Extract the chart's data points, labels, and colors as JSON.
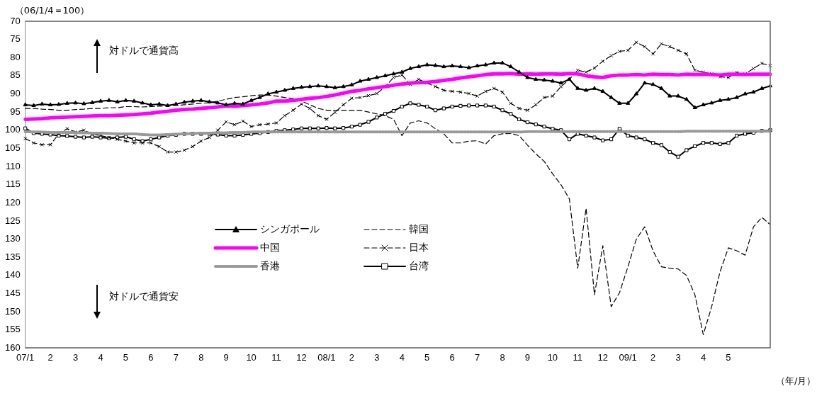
{
  "chart_data": {
    "type": "line",
    "ylabel": "（06/1/4＝100）",
    "xlabel": "（年/月）",
    "annotations": [
      "対ドルで通貨高",
      "対ドルで通貨安"
    ],
    "categories": [
      "07/1",
      null,
      null,
      "2",
      null,
      null,
      "3",
      null,
      null,
      "4",
      null,
      null,
      "5",
      null,
      null,
      "6",
      null,
      null,
      "7",
      null,
      null,
      "8",
      null,
      null,
      "9",
      null,
      null,
      "10",
      null,
      null,
      "11",
      null,
      null,
      "12",
      null,
      null,
      "08/1",
      null,
      null,
      "2",
      null,
      null,
      "3",
      null,
      null,
      "4",
      null,
      null,
      "5",
      null,
      null,
      "6",
      null,
      null,
      "7",
      null,
      null,
      "8",
      null,
      null,
      "9",
      null,
      null,
      "10",
      null,
      null,
      "11",
      null,
      null,
      "12",
      null,
      null,
      "09/1",
      null,
      null,
      "2",
      null,
      null,
      "3",
      null,
      null,
      "4",
      null,
      null,
      "5",
      null,
      null,
      null,
      null,
      null
    ],
    "ylim": [
      160,
      70
    ],
    "yticks": [
      70,
      75,
      80,
      85,
      90,
      95,
      100,
      105,
      110,
      115,
      120,
      125,
      130,
      135,
      140,
      145,
      150,
      155,
      160
    ],
    "grid": false,
    "legend": "bottom",
    "series": [
      {
        "name": "シンガポール",
        "color": "#000000",
        "marker": "triangle",
        "line_style": "solid",
        "values": [
          93,
          93.2,
          92.8,
          93,
          92.9,
          92.6,
          92.5,
          92.7,
          92.4,
          92,
          91.8,
          92.2,
          91.8,
          92,
          92.5,
          93,
          92.8,
          93.2,
          92.8,
          92.3,
          92,
          91.8,
          92.2,
          92.5,
          93,
          92.6,
          92.8,
          91.8,
          91,
          90,
          89.5,
          89,
          88.5,
          88.2,
          88,
          87.8,
          88,
          88.3,
          88,
          87.5,
          86.5,
          86,
          85.5,
          85,
          84.5,
          84,
          83,
          82.5,
          82,
          82.2,
          82.5,
          82.3,
          82.5,
          82.8,
          82.3,
          82,
          81.5,
          81.5,
          82.5,
          84,
          85.5,
          86,
          86.2,
          86.5,
          87,
          86,
          88.5,
          89,
          88.5,
          89.3,
          91,
          92.6,
          92.6,
          90,
          87,
          87.4,
          88.5,
          90.6,
          90.6,
          91.5,
          93.8,
          93,
          92.5,
          91.8,
          91.5,
          91,
          90,
          89.5,
          88.5,
          87.8
        ]
      },
      {
        "name": "中国",
        "color": "#ff00ff",
        "marker": "none",
        "line_style": "solid",
        "values": [
          97,
          96.9,
          96.8,
          96.6,
          96.5,
          96.4,
          96.3,
          96.2,
          96.1,
          96,
          96,
          95.9,
          95.8,
          95.7,
          95.5,
          95.3,
          95,
          94.8,
          94.5,
          94.3,
          94.2,
          94,
          93.8,
          93.6,
          93.3,
          93.4,
          93.2,
          93,
          92.8,
          92.5,
          92,
          92,
          91.8,
          91.5,
          91.2,
          91,
          90.7,
          90.3,
          89.8,
          89.3,
          89,
          88.6,
          88.3,
          88,
          87.6,
          87.3,
          87,
          86.9,
          86.8,
          86.6,
          86.3,
          86,
          85.6,
          85.3,
          85,
          84.7,
          84.5,
          84.5,
          84.4,
          84.6,
          84.5,
          84.6,
          84.5,
          84.5,
          84.6,
          84.4,
          84.5,
          85,
          85.3,
          85.5,
          85,
          84.8,
          84.8,
          84.7,
          84.8,
          84.6,
          84.7,
          84.7,
          84.8,
          84.6,
          84.7,
          84.6,
          84.7,
          84.8,
          84.6,
          84.6,
          84.7,
          84.6,
          84.6,
          84.6
        ]
      },
      {
        "name": "香港",
        "color": "#999999",
        "marker": "none",
        "line_style": "dotted",
        "values": [
          100.4,
          100.5,
          100.5,
          100.6,
          100.6,
          100.6,
          100.7,
          100.7,
          100.8,
          100.8,
          100.9,
          101,
          101,
          101,
          101.2,
          101.3,
          101.3,
          101.2,
          101.1,
          101,
          100.9,
          100.8,
          100.8,
          100.7,
          100.7,
          100.6,
          100.6,
          100.5,
          100.5,
          100.5,
          100.5,
          100.5,
          100.5,
          100.5,
          100.5,
          100.5,
          100.5,
          100.5,
          100.5,
          100.5,
          100.5,
          100.5,
          100.5,
          100.5,
          100.5,
          100.5,
          100.5,
          100.5,
          100.5,
          100.5,
          100.5,
          100.5,
          100.5,
          100.5,
          100.5,
          100.5,
          100.5,
          100.5,
          100.5,
          100.5,
          100.4,
          100.4,
          100.4,
          100.4,
          100.4,
          100.4,
          100.4,
          100.4,
          100.4,
          100.4,
          100.4,
          100.4,
          100.4,
          100.4,
          100.4,
          100.4,
          100.4,
          100.4,
          100.4,
          100.3,
          100.3,
          100.3,
          100.3,
          100.3,
          100.3,
          100.3,
          100.3,
          100.3,
          100.3,
          100.3
        ]
      },
      {
        "name": "韓国",
        "color": "#000000",
        "marker": "none",
        "line_style": "dashed",
        "values": [
          94,
          94,
          94.2,
          94.3,
          94.5,
          94.5,
          94.3,
          94.2,
          94,
          94,
          93.8,
          93.8,
          93.5,
          93.5,
          93.6,
          93.5,
          93.4,
          93.2,
          93.2,
          93,
          92.8,
          92.6,
          92.4,
          92,
          91.5,
          91,
          90.8,
          90.5,
          90.3,
          90.3,
          90.6,
          91,
          91.3,
          92,
          93,
          94,
          94.5,
          94.5,
          94.5,
          94.5,
          94.5,
          95,
          95.5,
          96,
          97,
          101.5,
          98,
          97.4,
          98,
          99.6,
          101,
          103.5,
          103.5,
          103,
          102.9,
          103.8,
          101.5,
          101,
          100.9,
          101.5,
          104.1,
          106.5,
          108.6,
          112,
          115,
          118.9,
          138,
          121.5,
          145.3,
          131.8,
          148.6,
          144.7,
          137.6,
          130,
          126.6,
          133.2,
          137.6,
          138,
          138.2,
          140,
          145.3,
          156.3,
          148.6,
          139,
          132.4,
          133.2,
          134.4,
          126.6,
          124,
          126
        ]
      },
      {
        "name": "日本",
        "color": "#000000",
        "marker": "cross",
        "line_style": "dashed",
        "values": [
          102.3,
          103.5,
          104,
          104,
          101,
          99.6,
          100.5,
          100,
          101,
          101.5,
          102,
          102.5,
          103,
          103.5,
          103.5,
          103.5,
          104.5,
          106,
          106,
          105.5,
          104.5,
          103,
          102,
          100,
          97.7,
          98.5,
          97.5,
          99,
          98.5,
          98.3,
          98,
          96,
          94.5,
          92.8,
          94,
          96,
          97,
          95.1,
          93,
          91.2,
          91,
          90.5,
          89.9,
          88,
          85.5,
          84.8,
          87.4,
          86,
          87,
          88,
          89,
          89.3,
          89.5,
          89.9,
          90.6,
          89.3,
          88.5,
          89.5,
          92.6,
          94,
          94.5,
          93,
          91,
          90.6,
          88,
          86,
          83.5,
          84,
          82.9,
          81,
          79.5,
          78.3,
          78,
          75.8,
          77,
          79,
          76.2,
          77,
          78,
          79,
          83.5,
          84,
          84.5,
          85.3,
          85.5,
          84.1,
          84.5,
          83,
          81.6,
          82.2
        ]
      },
      {
        "name": "台湾",
        "color": "#000000",
        "marker": "square",
        "line_style": "solid",
        "values": [
          99.5,
          100.8,
          101,
          101.2,
          101.5,
          101.6,
          101.8,
          102,
          101.8,
          102,
          102.2,
          102,
          101.8,
          102.5,
          103,
          102.5,
          102,
          101.5,
          101.3,
          101,
          101,
          101,
          101,
          101.2,
          101.5,
          101.5,
          101.3,
          101,
          100.8,
          100.5,
          100.2,
          100,
          99.8,
          99.5,
          99.5,
          99.5,
          99.4,
          99.5,
          99.4,
          99,
          98.5,
          97.7,
          96.5,
          95.5,
          94.7,
          93.5,
          92.6,
          93,
          93.5,
          94.5,
          94,
          93.5,
          93.3,
          93.2,
          93.2,
          93.2,
          93.5,
          94.5,
          95.5,
          97,
          97.8,
          98.4,
          99,
          99.6,
          100,
          102.5,
          101,
          101.5,
          102,
          102.8,
          102.5,
          99.6,
          101.5,
          102,
          102.5,
          103.5,
          104.1,
          106,
          107.3,
          105.5,
          104.4,
          103.5,
          103.5,
          103.8,
          103.5,
          101.5,
          101,
          100.7,
          100.2,
          100
        ]
      }
    ]
  }
}
